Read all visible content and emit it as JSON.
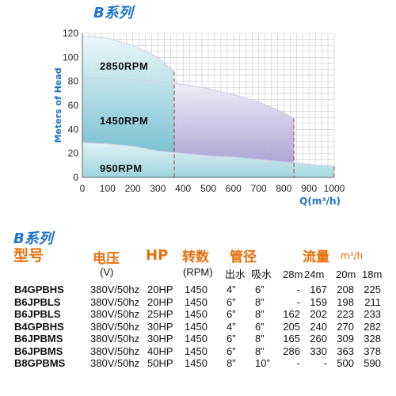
{
  "title": "B系列",
  "chart_data": {
    "type": "area",
    "xlabel": "Q(m³/h)",
    "ylabel": "Meters of Head",
    "xlim": [
      0,
      1000
    ],
    "ylim": [
      0,
      120
    ],
    "xticks": [
      0,
      100,
      200,
      300,
      400,
      500,
      600,
      700,
      800,
      900,
      1000
    ],
    "yticks": [
      0,
      20,
      40,
      60,
      80,
      100,
      120
    ],
    "grid": true,
    "series": [
      {
        "name": "2850RPM",
        "color": "#7dc8d6",
        "x": [
          0,
          100,
          200,
          300,
          365
        ],
        "top": [
          118,
          116,
          110,
          100,
          88
        ],
        "bottom": [
          0,
          0,
          0,
          0,
          0
        ]
      },
      {
        "name": "1450RPM",
        "color": "#b9b3dc",
        "x": [
          0,
          100,
          200,
          300,
          400,
          500,
          600,
          700,
          800,
          840
        ],
        "top": [
          83,
          82.5,
          81.5,
          80,
          77.5,
          74,
          69,
          63,
          54,
          49
        ],
        "bottom": [
          0,
          0,
          0,
          0,
          0,
          0,
          0,
          0,
          0,
          0
        ]
      },
      {
        "name": "950RPM",
        "color": "#bfe4ea",
        "x": [
          0,
          100,
          200,
          300,
          400,
          500,
          600,
          700,
          800,
          900,
          1000
        ],
        "top": [
          29,
          28,
          26,
          22,
          20,
          18,
          17,
          15,
          13,
          11,
          9
        ],
        "bottom": [
          0,
          0,
          0,
          0,
          0,
          0,
          0,
          0,
          0,
          0,
          0
        ]
      }
    ]
  },
  "table": {
    "section_title": "B系列",
    "headers": {
      "model": "型号",
      "voltage": "电压",
      "hp": "HP",
      "speed": "转数",
      "pipe": "管径",
      "flow": "流量",
      "flow_unit": "m³/h"
    },
    "subheaders": {
      "voltage": "(V)",
      "speed": "(RPM)",
      "outlet": "出水",
      "inlet": "吸水",
      "h28": "28m",
      "h24": "24m",
      "h20": "20m",
      "h18": "18m"
    },
    "rows": [
      {
        "model": "B4GPBHS",
        "voltage": "380V/50hz",
        "hp": "20HP",
        "rpm": "1450",
        "outlet": "4”",
        "inlet": "6”",
        "h28": "-",
        "h24": "167",
        "h20": "208",
        "h18": "225"
      },
      {
        "model": "B6JPBLS",
        "voltage": "380V/50hz",
        "hp": "20HP",
        "rpm": "1450",
        "outlet": "6”",
        "inlet": "8”",
        "h28": "-",
        "h24": "159",
        "h20": "198",
        "h18": "211"
      },
      {
        "model": "B6JPBLS",
        "voltage": "380V/50hz",
        "hp": "25HP",
        "rpm": "1450",
        "outlet": "6”",
        "inlet": "8”",
        "h28": "162",
        "h24": "202",
        "h20": "223",
        "h18": "233"
      },
      {
        "model": "B4GPBHS",
        "voltage": "380V/50hz",
        "hp": "30HP",
        "rpm": "1450",
        "outlet": "4”",
        "inlet": "6”",
        "h28": "205",
        "h24": "240",
        "h20": "270",
        "h18": "282"
      },
      {
        "model": "B6JPBMS",
        "voltage": "380V/50hz",
        "hp": "30HP",
        "rpm": "1450",
        "outlet": "6”",
        "inlet": "8”",
        "h28": "165",
        "h24": "260",
        "h20": "309",
        "h18": "328"
      },
      {
        "model": "B6JPBMS",
        "voltage": "380V/50hz",
        "hp": "40HP",
        "rpm": "1450",
        "outlet": "6”",
        "inlet": "8”",
        "h28": "286",
        "h24": "330",
        "h20": "363",
        "h18": "378"
      },
      {
        "model": "B8GPBMS",
        "voltage": "380V/50hz",
        "hp": "50HP",
        "rpm": "1450",
        "outlet": "8”",
        "inlet": "10”",
        "h28": "-",
        "h24": "-",
        "h20": "500",
        "h18": "590"
      }
    ]
  }
}
